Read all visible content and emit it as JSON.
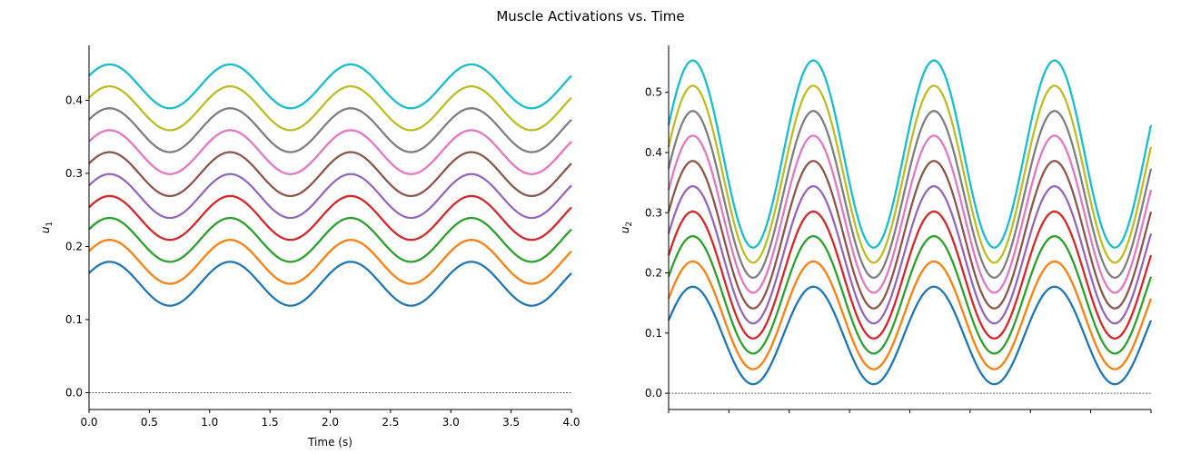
{
  "figure": {
    "title": "Muscle Activations vs. Time"
  },
  "chart_data": [
    {
      "type": "line",
      "xlabel": "Time (s)",
      "ylabel": "u",
      "ylabel_sub": "1",
      "xlim": [
        0.0,
        4.0
      ],
      "ylim": [
        -0.023,
        0.475
      ],
      "xticks": [
        "0.0",
        "0.5",
        "1.0",
        "1.5",
        "2.0",
        "2.5",
        "3.0",
        "3.5",
        "4.0"
      ],
      "yticks": [
        "0.0",
        "0.1",
        "0.2",
        "0.3",
        "0.4"
      ],
      "grid": false,
      "zero_line": true,
      "period_s": 1.0,
      "amplitude": 0.03,
      "phase_peak_s": 0.17,
      "series_centers": [
        0.149,
        0.179,
        0.209,
        0.239,
        0.269,
        0.299,
        0.329,
        0.359,
        0.389,
        0.419
      ],
      "series_colors": [
        "#1f77b4",
        "#ff7f0e",
        "#2ca02c",
        "#d62728",
        "#9467bd",
        "#8c564b",
        "#e377c2",
        "#7f7f7f",
        "#bcbd22",
        "#17becf"
      ]
    },
    {
      "type": "line",
      "xlabel": "",
      "ylabel": "u",
      "ylabel_sub": "2",
      "xlim": [
        0.0,
        4.0
      ],
      "ylim": [
        -0.027,
        0.578
      ],
      "xticks": [
        "",
        "",
        "",
        "",
        "",
        "",
        "",
        "",
        ""
      ],
      "yticks": [
        "0.0",
        "0.1",
        "0.2",
        "0.3",
        "0.4",
        "0.5"
      ],
      "grid": false,
      "zero_line": true,
      "period_s": 1.0,
      "phase_peak_s": 0.2,
      "series_peaks": [
        0.177,
        0.219,
        0.261,
        0.302,
        0.344,
        0.386,
        0.428,
        0.469,
        0.511,
        0.553
      ],
      "series_troughs": [
        0.015,
        0.04,
        0.066,
        0.091,
        0.116,
        0.141,
        0.167,
        0.192,
        0.217,
        0.242
      ],
      "series_colors": [
        "#1f77b4",
        "#ff7f0e",
        "#2ca02c",
        "#d62728",
        "#9467bd",
        "#8c564b",
        "#e377c2",
        "#7f7f7f",
        "#bcbd22",
        "#17becf"
      ]
    }
  ]
}
